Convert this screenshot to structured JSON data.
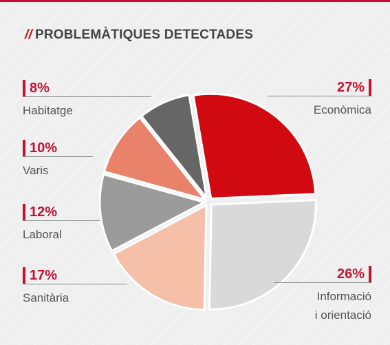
{
  "chart_data": {
    "type": "pie",
    "title_prefix": "//",
    "title": "PROBLEMÀTIQUES DETECTADES",
    "categories": [
      "Econòmica",
      "Informació\ni orientació",
      "Sanitària",
      "Laboral",
      "Varis",
      "Habitatge"
    ],
    "values": [
      27,
      26,
      17,
      12,
      10,
      8
    ],
    "value_labels": [
      "27%",
      "26%",
      "17%",
      "12%",
      "10%",
      "8%"
    ],
    "colors": [
      "#d10a11",
      "#d9d9d9",
      "#f5bfa8",
      "#9b9b9b",
      "#e8826a",
      "#666666"
    ]
  }
}
